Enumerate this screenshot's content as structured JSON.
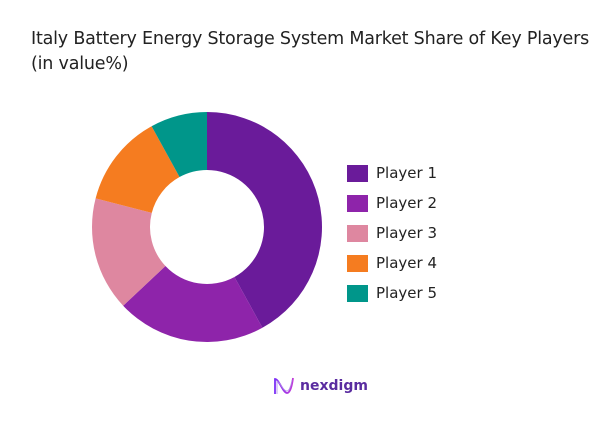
{
  "title": "Italy Battery Energy Storage System Market Share of Key Players (in value%)",
  "chart_data": {
    "type": "pie",
    "subtype": "donut",
    "title": "Italy Battery Energy Storage System Market Share of Key Players (in value%)",
    "categories": [
      "Player 1",
      "Player 2",
      "Player 3",
      "Player 4",
      "Player 5"
    ],
    "values": [
      42,
      21,
      16,
      13,
      8
    ],
    "colors": [
      "#6a1b9a",
      "#8e24aa",
      "#de87a0",
      "#f57c20",
      "#00968a"
    ],
    "legend_position": "right",
    "start_angle": "top, clockwise"
  },
  "legend": {
    "items": [
      {
        "label": "Player 1",
        "color": "#6a1b9a"
      },
      {
        "label": "Player 2",
        "color": "#8e24aa"
      },
      {
        "label": "Player 3",
        "color": "#de87a0"
      },
      {
        "label": "Player 4",
        "color": "#f57c20"
      },
      {
        "label": "Player 5",
        "color": "#00968a"
      }
    ]
  },
  "brand": {
    "name": "nexdigm",
    "icon": "nexdigm-logo-icon"
  }
}
